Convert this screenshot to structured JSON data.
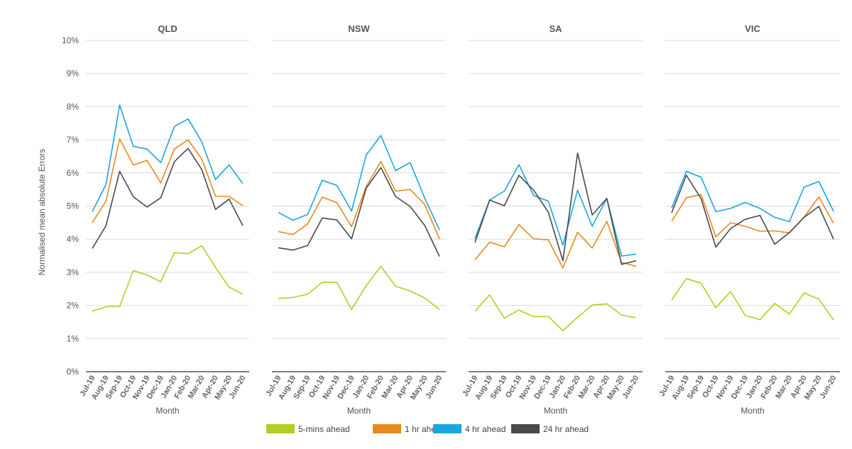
{
  "chart_data": {
    "type": "line",
    "ylabel": "Normalised mean absolute Errors",
    "xlabel": "Month",
    "ylim": [
      0,
      10
    ],
    "yticks": [
      "0%",
      "1%",
      "2%",
      "3%",
      "4%",
      "5%",
      "6%",
      "7%",
      "8%",
      "9%",
      "10%"
    ],
    "grid": true,
    "legend_position": "bottom",
    "categories": [
      "Jul-19",
      "Aug-19",
      "Sep-19",
      "Oct-19",
      "Nov-19",
      "Dec-19",
      "Jan-20",
      "Feb-20",
      "Mar-20",
      "Apr-20",
      "May-20",
      "Jun-20"
    ],
    "series_meta": [
      {
        "name": "5-mins ahead",
        "color": "#b5cc2a"
      },
      {
        "name": "1 hr ahead",
        "color": "#e68a1e"
      },
      {
        "name": "4 hr ahead",
        "color": "#1ba5e0"
      },
      {
        "name": "24 hr ahead",
        "color": "#4a4a4a"
      }
    ],
    "panels": [
      {
        "title": "QLD",
        "series": [
          {
            "name": "5-mins ahead",
            "values": [
              1.83,
              1.96,
              1.97,
              3.05,
              2.92,
              2.71,
              3.6,
              3.56,
              3.8,
              3.15,
              2.55,
              2.34
            ]
          },
          {
            "name": "1 hr ahead",
            "values": [
              4.5,
              5.15,
              7.03,
              6.24,
              6.38,
              5.7,
              6.72,
              7.0,
              6.42,
              5.3,
              5.29,
              5.01
            ]
          },
          {
            "name": "4 hr ahead",
            "values": [
              4.83,
              5.65,
              8.05,
              6.8,
              6.72,
              6.31,
              7.4,
              7.63,
              6.94,
              5.8,
              6.24,
              5.68
            ]
          },
          {
            "name": "24 hr ahead",
            "values": [
              3.72,
              4.41,
              6.05,
              5.28,
              4.97,
              5.25,
              6.34,
              6.74,
              6.1,
              4.9,
              5.21,
              4.41
            ]
          }
        ]
      },
      {
        "title": "NSW",
        "series": [
          {
            "name": "5-mins ahead",
            "values": [
              2.21,
              2.24,
              2.34,
              2.7,
              2.7,
              1.88,
              2.6,
              3.18,
              2.58,
              2.44,
              2.22,
              1.88
            ]
          },
          {
            "name": "1 hr ahead",
            "values": [
              4.23,
              4.14,
              4.46,
              5.27,
              5.1,
              4.38,
              5.59,
              6.35,
              5.45,
              5.5,
              5.04,
              4.01
            ]
          },
          {
            "name": "4 hr ahead",
            "values": [
              4.81,
              4.57,
              4.75,
              5.78,
              5.62,
              4.85,
              6.54,
              7.13,
              6.07,
              6.31,
              5.23,
              4.28
            ]
          },
          {
            "name": "24 hr ahead",
            "values": [
              3.74,
              3.67,
              3.81,
              4.64,
              4.58,
              4.01,
              5.54,
              6.16,
              5.29,
              4.99,
              4.41,
              3.48
            ]
          }
        ]
      },
      {
        "title": "SA",
        "series": [
          {
            "name": "5-mins ahead",
            "values": [
              1.83,
              2.32,
              1.62,
              1.86,
              1.66,
              1.67,
              1.24,
              1.64,
              2.01,
              2.05,
              1.71,
              1.63
            ]
          },
          {
            "name": "1 hr ahead",
            "values": [
              3.38,
              3.91,
              3.77,
              4.44,
              4.01,
              3.98,
              3.13,
              4.21,
              3.73,
              4.54,
              3.3,
              3.18
            ]
          },
          {
            "name": "4 hr ahead",
            "values": [
              4.02,
              5.18,
              5.45,
              6.25,
              5.32,
              5.15,
              3.82,
              5.48,
              4.39,
              5.23,
              3.49,
              3.55
            ]
          },
          {
            "name": "24 hr ahead",
            "values": [
              3.9,
              5.18,
              5.01,
              5.93,
              5.48,
              4.82,
              3.35,
              6.6,
              4.73,
              5.23,
              3.24,
              3.35
            ]
          }
        ]
      },
      {
        "title": "VIC",
        "series": [
          {
            "name": "5-mins ahead",
            "values": [
              2.17,
              2.81,
              2.67,
              1.93,
              2.42,
              1.7,
              1.57,
              2.06,
              1.74,
              2.38,
              2.19,
              1.56
            ]
          },
          {
            "name": "1 hr ahead",
            "values": [
              4.54,
              5.25,
              5.35,
              4.07,
              4.5,
              4.39,
              4.24,
              4.25,
              4.19,
              4.66,
              5.28,
              4.48
            ]
          },
          {
            "name": "4 hr ahead",
            "values": [
              4.94,
              6.05,
              5.87,
              4.83,
              4.93,
              5.11,
              4.93,
              4.66,
              4.53,
              5.57,
              5.74,
              4.84
            ]
          },
          {
            "name": "24 hr ahead",
            "values": [
              4.8,
              5.93,
              5.22,
              3.76,
              4.32,
              4.6,
              4.72,
              3.85,
              4.2,
              4.66,
              4.99,
              4.0
            ]
          }
        ]
      }
    ]
  }
}
